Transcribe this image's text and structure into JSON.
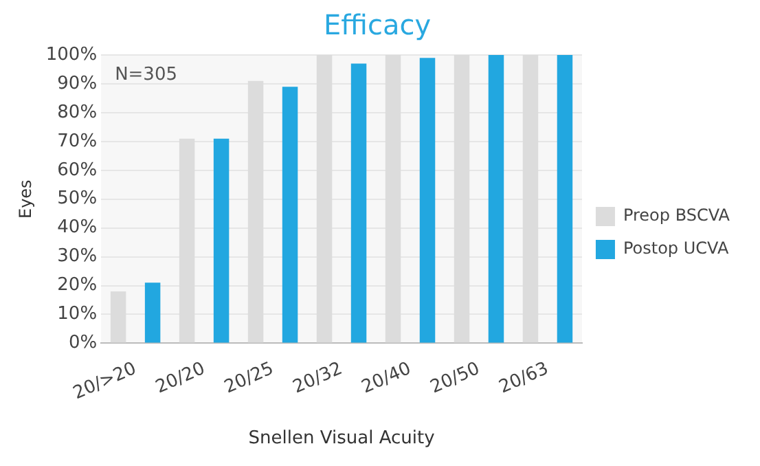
{
  "chart_data": {
    "type": "bar",
    "title": "Efficacy",
    "xlabel": "Snellen Visual Acuity",
    "ylabel": "Eyes",
    "categories": [
      "20/>20",
      "20/20",
      "20/25",
      "20/32",
      "20/40",
      "20/50",
      "20/63"
    ],
    "series": [
      {
        "name": "Preop BSCVA",
        "color": "#dcdcdc",
        "values": [
          18,
          71,
          91,
          100,
          100,
          100,
          100
        ]
      },
      {
        "name": "Postop UCVA",
        "color": "#22a7e0",
        "values": [
          21,
          71,
          89,
          97,
          99,
          100,
          100
        ]
      }
    ],
    "ylim": [
      0,
      100
    ],
    "yticks": [
      {
        "value": 0,
        "label": "0%"
      },
      {
        "value": 10,
        "label": "10%"
      },
      {
        "value": 20,
        "label": "20%"
      },
      {
        "value": 30,
        "label": "30%"
      },
      {
        "value": 40,
        "label": "40%"
      },
      {
        "value": 50,
        "label": "50%"
      },
      {
        "value": 60,
        "label": "60%"
      },
      {
        "value": 70,
        "label": "70%"
      },
      {
        "value": 80,
        "label": "80%"
      },
      {
        "value": 90,
        "label": "90%"
      },
      {
        "value": 100,
        "label": "100%"
      }
    ],
    "annotations": [
      "N=305"
    ],
    "grid": "y",
    "legend": "right"
  }
}
